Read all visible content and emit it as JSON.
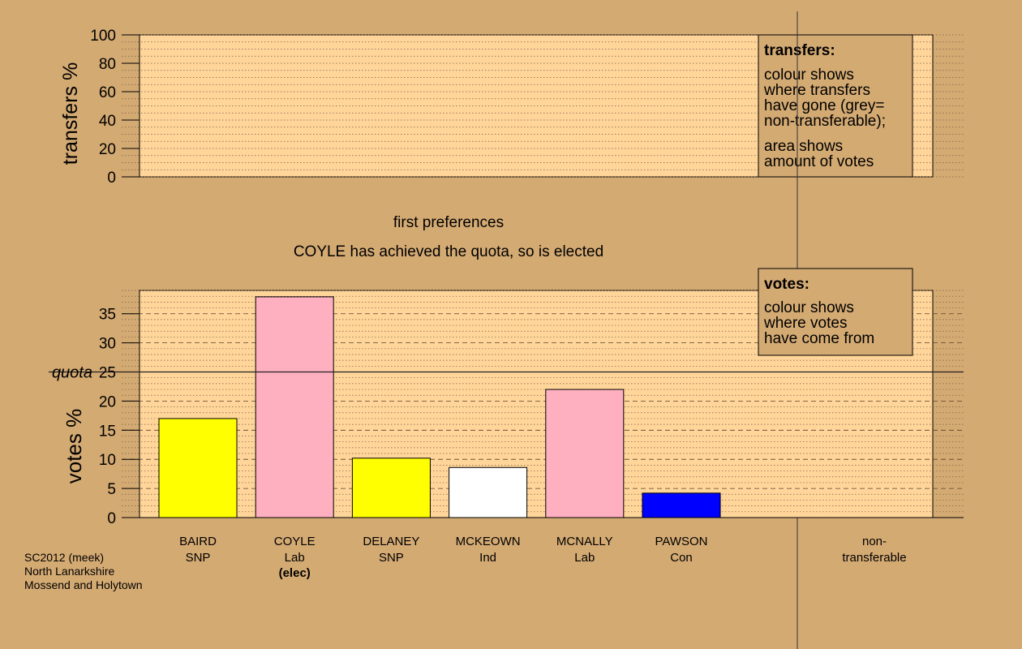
{
  "top_panel": {
    "ylabel": "transfers %",
    "ticks": [
      "0",
      "20",
      "40",
      "60",
      "80",
      "100"
    ],
    "legend": {
      "title": "transfers:",
      "lines1": [
        "colour shows",
        "where transfers",
        "have gone (grey=",
        "non-transferable);"
      ],
      "lines2": [
        "area shows",
        "amount of votes"
      ]
    }
  },
  "stage_title": "first preferences",
  "status_text": "COYLE has achieved the quota, so is elected",
  "bottom_panel": {
    "ylabel": "votes %",
    "quota_label": "quota",
    "legend": {
      "title": "votes:",
      "lines": [
        "colour shows",
        "where votes",
        "have come from"
      ]
    }
  },
  "footer": {
    "lines": [
      "SC2012 (meek)",
      "North Lanarkshire",
      "Mossend and Holytown"
    ]
  },
  "colors": {
    "background": "#d4aa73",
    "plot_bg": "#ffd59a",
    "SNP": "#ffff00",
    "Lab": "#ffb0c0",
    "Ind": "#ffffff",
    "Con": "#0000ff"
  },
  "chart_data": [
    {
      "type": "bar",
      "title": "",
      "ylabel": "transfers %",
      "ylim": [
        0,
        100
      ],
      "yticks": [
        0,
        20,
        40,
        60,
        80,
        100
      ],
      "series": []
    },
    {
      "type": "bar",
      "title": "first preferences",
      "ylabel": "votes %",
      "ylim": [
        0,
        39
      ],
      "yticks": [
        0,
        5,
        10,
        15,
        20,
        25,
        30,
        35
      ],
      "quota": 25,
      "quota_label": "quota",
      "categories": [
        {
          "name": "BAIRD",
          "party": "SNP",
          "value": 17.0,
          "color": "#ffff00",
          "note": ""
        },
        {
          "name": "COYLE",
          "party": "Lab",
          "value": 37.9,
          "color": "#ffb0c0",
          "note": "(elec)"
        },
        {
          "name": "DELANEY",
          "party": "SNP",
          "value": 10.2,
          "color": "#ffff00",
          "note": ""
        },
        {
          "name": "MCKEOWN",
          "party": "Ind",
          "value": 8.6,
          "color": "#ffffff",
          "note": ""
        },
        {
          "name": "MCNALLY",
          "party": "Lab",
          "value": 22.0,
          "color": "#ffb0c0",
          "note": ""
        },
        {
          "name": "PAWSON",
          "party": "Con",
          "value": 4.2,
          "color": "#0000ff",
          "note": ""
        }
      ],
      "nontransferable": {
        "line1": "non-",
        "line2": "transferable",
        "value": 0
      }
    }
  ]
}
